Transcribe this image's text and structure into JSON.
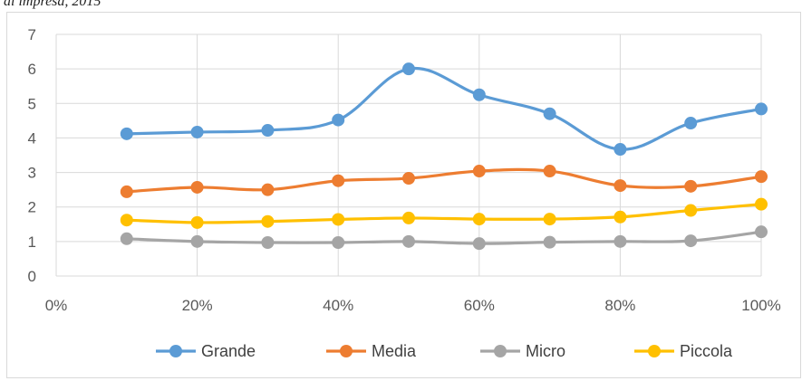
{
  "caption": "di impresa, 2015",
  "chart_data": {
    "type": "line",
    "x": [
      10,
      20,
      30,
      40,
      50,
      60,
      70,
      80,
      90,
      100
    ],
    "x_tick_values": [
      0,
      20,
      40,
      60,
      80,
      100
    ],
    "x_tick_labels": [
      "0%",
      "20%",
      "40%",
      "60%",
      "80%",
      "100%"
    ],
    "xlim": [
      0,
      100
    ],
    "ylim": [
      0,
      7
    ],
    "y_tick_values": [
      0,
      1,
      2,
      3,
      4,
      5,
      6,
      7
    ],
    "y_tick_labels": [
      "0",
      "1",
      "2",
      "3",
      "4",
      "5",
      "6",
      "7"
    ],
    "grid": true,
    "smooth": true,
    "legend_position": "bottom",
    "title": "",
    "xlabel": "",
    "ylabel": "",
    "series": [
      {
        "name": "Grande",
        "color": "#5b9bd5",
        "values": [
          4.12,
          4.17,
          4.22,
          4.52,
          6.0,
          5.25,
          4.7,
          3.67,
          4.43,
          4.84
        ]
      },
      {
        "name": "Media",
        "color": "#ed7d31",
        "values": [
          2.44,
          2.57,
          2.5,
          2.76,
          2.83,
          3.04,
          3.04,
          2.62,
          2.6,
          2.88
        ]
      },
      {
        "name": "Micro",
        "color": "#a5a5a5",
        "values": [
          1.08,
          1.0,
          0.97,
          0.97,
          1.0,
          0.94,
          0.98,
          1.0,
          1.02,
          1.28
        ]
      },
      {
        "name": "Piccola",
        "color": "#ffc000",
        "values": [
          1.62,
          1.55,
          1.58,
          1.64,
          1.68,
          1.65,
          1.65,
          1.71,
          1.9,
          2.08
        ]
      }
    ]
  }
}
